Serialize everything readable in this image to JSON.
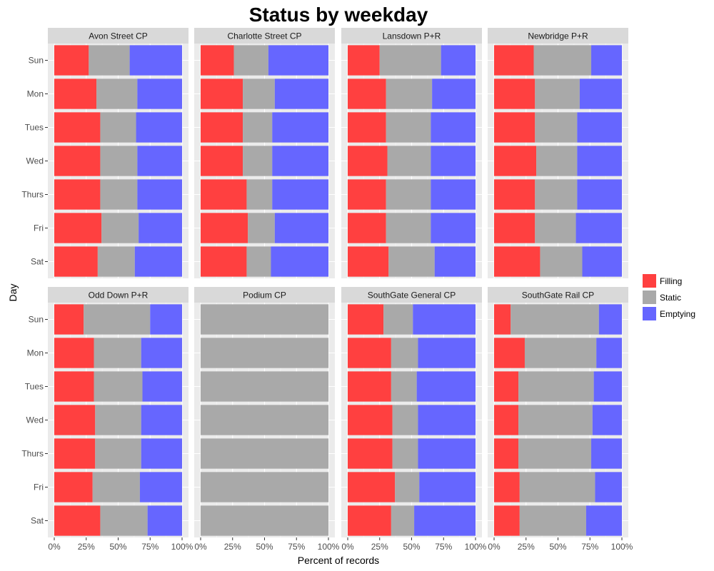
{
  "chart_data": {
    "type": "bar",
    "orientation": "horizontal-stacked-100",
    "title": "Status by weekday",
    "xlabel": "Percent of records",
    "ylabel": "Day",
    "xlim": [
      0,
      1
    ],
    "x_ticks": [
      "0%",
      "25%",
      "50%",
      "75%",
      "100%"
    ],
    "categories": [
      "Sun",
      "Mon",
      "Tues",
      "Wed",
      "Thurs",
      "Fri",
      "Sat"
    ],
    "stack_order": [
      "Filling",
      "Static",
      "Emptying"
    ],
    "legend": {
      "position": "right",
      "entries": [
        {
          "label": "Filling",
          "color": "#ff4040"
        },
        {
          "label": "Static",
          "color": "#a9a9a9"
        },
        {
          "label": "Emptying",
          "color": "#6666ff"
        }
      ]
    },
    "grid": true,
    "facets": [
      {
        "name": "Avon Street CP",
        "filling": [
          0.27,
          0.33,
          0.36,
          0.36,
          0.36,
          0.37,
          0.34
        ],
        "static": [
          0.32,
          0.32,
          0.28,
          0.29,
          0.29,
          0.29,
          0.29
        ],
        "emptying": [
          0.41,
          0.35,
          0.36,
          0.35,
          0.35,
          0.34,
          0.37
        ]
      },
      {
        "name": "Charlotte Street CP",
        "filling": [
          0.26,
          0.33,
          0.33,
          0.33,
          0.36,
          0.37,
          0.36
        ],
        "static": [
          0.27,
          0.25,
          0.23,
          0.23,
          0.2,
          0.21,
          0.19
        ],
        "emptying": [
          0.47,
          0.42,
          0.44,
          0.44,
          0.44,
          0.42,
          0.45
        ]
      },
      {
        "name": "Lansdown P+R",
        "filling": [
          0.25,
          0.3,
          0.3,
          0.31,
          0.3,
          0.3,
          0.32
        ],
        "static": [
          0.48,
          0.36,
          0.35,
          0.34,
          0.35,
          0.35,
          0.36
        ],
        "emptying": [
          0.27,
          0.34,
          0.35,
          0.35,
          0.35,
          0.35,
          0.32
        ]
      },
      {
        "name": "Newbridge P+R",
        "filling": [
          0.31,
          0.32,
          0.32,
          0.33,
          0.32,
          0.32,
          0.36
        ],
        "static": [
          0.45,
          0.35,
          0.33,
          0.32,
          0.33,
          0.32,
          0.33
        ],
        "emptying": [
          0.24,
          0.33,
          0.35,
          0.35,
          0.35,
          0.36,
          0.31
        ]
      },
      {
        "name": "Odd Down P+R",
        "filling": [
          0.23,
          0.31,
          0.31,
          0.32,
          0.32,
          0.3,
          0.36
        ],
        "static": [
          0.52,
          0.37,
          0.38,
          0.36,
          0.36,
          0.37,
          0.37
        ],
        "emptying": [
          0.25,
          0.32,
          0.31,
          0.32,
          0.32,
          0.33,
          0.27
        ]
      },
      {
        "name": "Podium CP",
        "filling": [
          0,
          0,
          0,
          0,
          0,
          0,
          0
        ],
        "static": [
          1,
          1,
          1,
          1,
          1,
          1,
          1
        ],
        "emptying": [
          0,
          0,
          0,
          0,
          0,
          0,
          0
        ]
      },
      {
        "name": "SouthGate General CP",
        "filling": [
          0.28,
          0.34,
          0.34,
          0.35,
          0.35,
          0.37,
          0.34
        ],
        "static": [
          0.23,
          0.21,
          0.2,
          0.2,
          0.2,
          0.19,
          0.18
        ],
        "emptying": [
          0.49,
          0.45,
          0.46,
          0.45,
          0.45,
          0.44,
          0.48
        ]
      },
      {
        "name": "SouthGate Rail CP",
        "filling": [
          0.13,
          0.24,
          0.19,
          0.19,
          0.19,
          0.2,
          0.2
        ],
        "static": [
          0.69,
          0.56,
          0.59,
          0.58,
          0.57,
          0.59,
          0.52
        ],
        "emptying": [
          0.18,
          0.2,
          0.22,
          0.23,
          0.24,
          0.21,
          0.28
        ]
      }
    ]
  }
}
